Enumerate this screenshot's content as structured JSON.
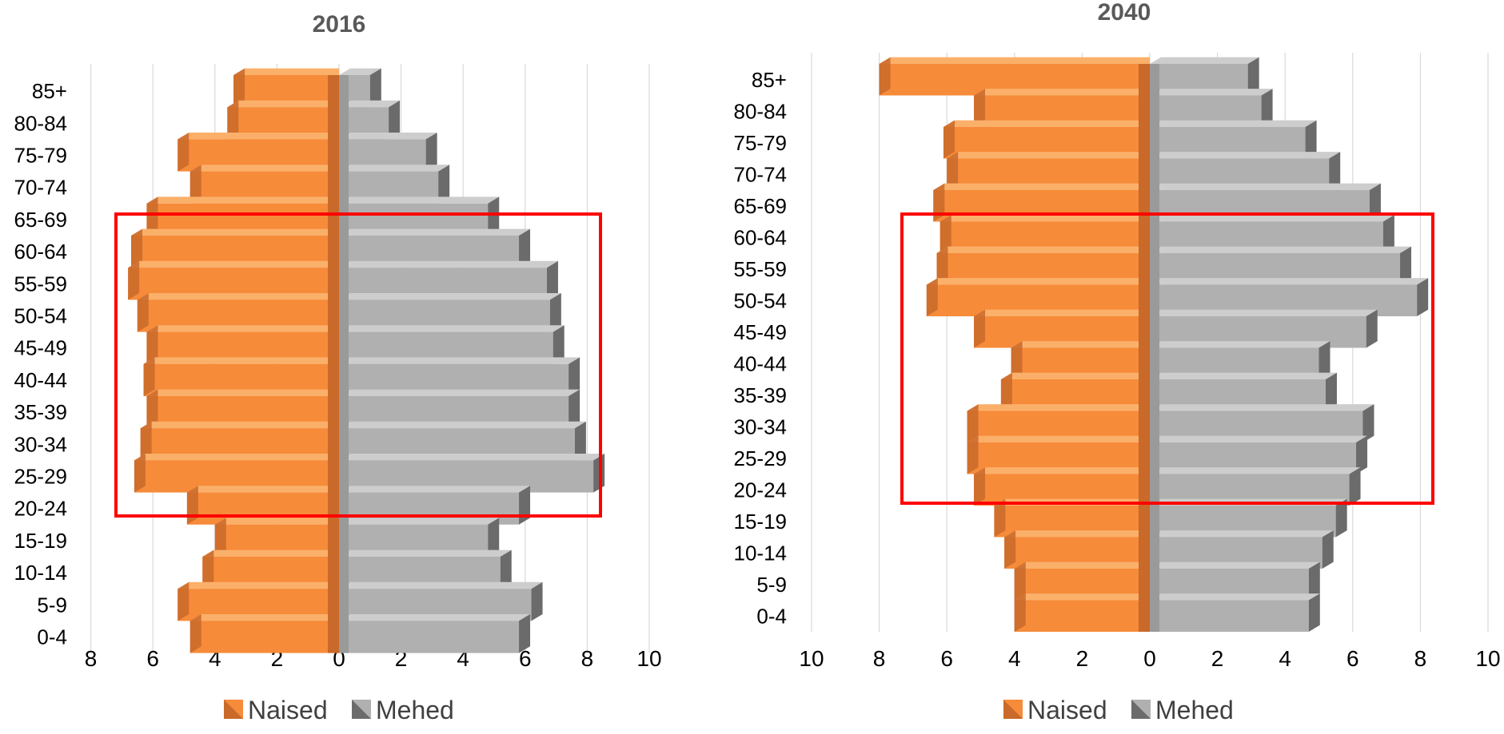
{
  "chart_data": [
    {
      "type": "bar",
      "orientation": "horizontal",
      "title": "2016",
      "categories": [
        "0-4",
        "5-9",
        "10-14",
        "15-19",
        "20-24",
        "25-29",
        "30-34",
        "35-39",
        "40-44",
        "45-49",
        "50-54",
        "55-59",
        "60-64",
        "65-69",
        "70-74",
        "75-79",
        "80-84",
        "85+"
      ],
      "series": [
        {
          "name": "Naised",
          "values": [
            4.8,
            5.2,
            4.4,
            4.0,
            4.9,
            6.6,
            6.4,
            6.2,
            6.3,
            6.2,
            6.5,
            6.8,
            6.7,
            6.2,
            4.8,
            5.2,
            3.6,
            3.4
          ]
        },
        {
          "name": "Mehed",
          "values": [
            5.8,
            6.2,
            5.2,
            4.8,
            5.8,
            8.2,
            7.6,
            7.4,
            7.4,
            6.9,
            6.8,
            6.7,
            5.8,
            4.8,
            3.2,
            2.8,
            1.6,
            1.0
          ]
        }
      ],
      "xticks": [
        "8",
        "6",
        "4",
        "2",
        "0",
        "2",
        "4",
        "6",
        "8",
        "10"
      ],
      "xlim": [
        -8,
        10
      ],
      "legend": "bottom",
      "grid": true
    },
    {
      "type": "bar",
      "orientation": "horizontal",
      "title": "2040",
      "categories": [
        "0-4",
        "5-9",
        "10-14",
        "15-19",
        "20-24",
        "25-29",
        "30-34",
        "35-39",
        "40-44",
        "45-49",
        "50-54",
        "55-59",
        "60-64",
        "65-69",
        "70-74",
        "75-79",
        "80-84",
        "85+"
      ],
      "series": [
        {
          "name": "Naised",
          "values": [
            4.0,
            4.0,
            4.3,
            4.6,
            5.2,
            5.4,
            5.4,
            4.4,
            4.1,
            5.2,
            6.6,
            6.3,
            6.2,
            6.4,
            6.0,
            6.1,
            5.2,
            8.0
          ]
        },
        {
          "name": "Mehed",
          "values": [
            4.7,
            4.7,
            5.1,
            5.5,
            5.9,
            6.1,
            6.3,
            5.2,
            5.0,
            6.4,
            7.9,
            7.4,
            6.9,
            6.5,
            5.3,
            4.6,
            3.3,
            2.9
          ]
        }
      ],
      "xticks": [
        "10",
        "8",
        "6",
        "4",
        "2",
        "0",
        "2",
        "4",
        "6",
        "8",
        "10"
      ],
      "xlim": [
        -10,
        10
      ],
      "legend": "bottom",
      "grid": true
    }
  ],
  "colors": {
    "female": "#f68b3a",
    "female_side": "#c9692a",
    "female_top": "#fbb06a",
    "male": "#b0b0b0",
    "male_side": "#6b6b6b",
    "male_top": "#cdcdcd",
    "grid": "#d9d9d9",
    "highlight": "#ff0000",
    "title": "#595959",
    "text": "#000000"
  }
}
